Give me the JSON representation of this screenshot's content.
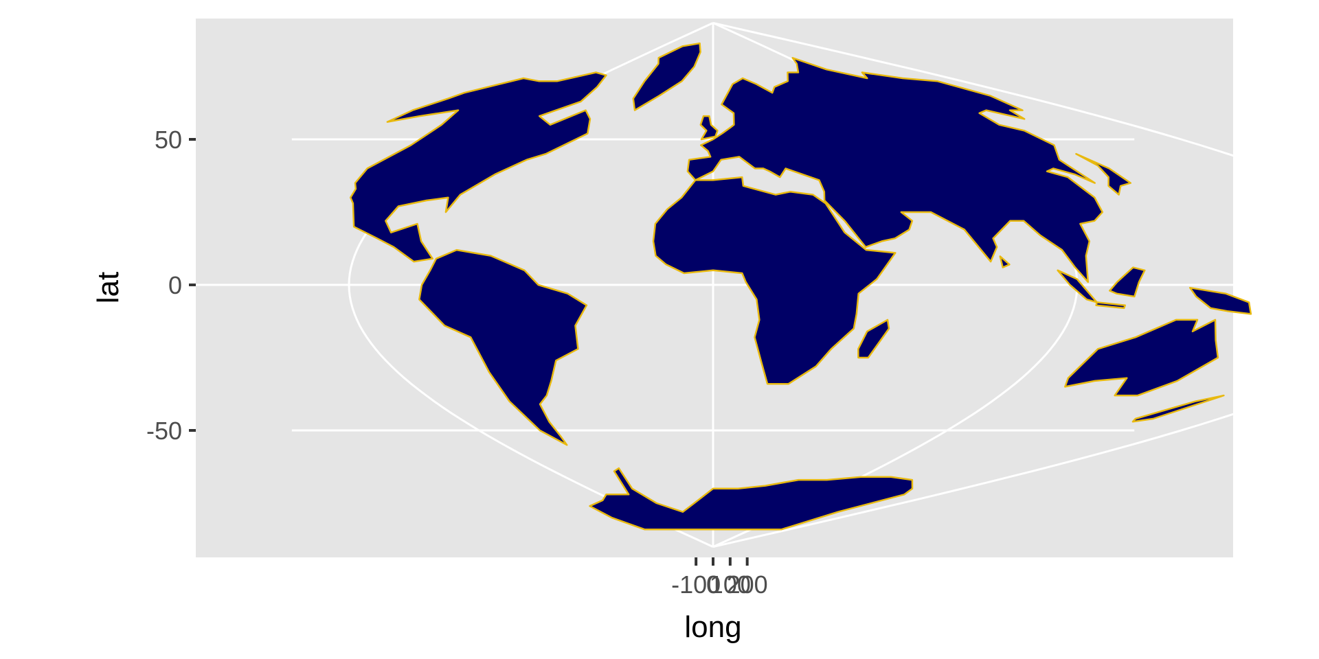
{
  "chart_data": {
    "type": "map",
    "projection": "sinusoidal",
    "x_axis": {
      "title": "long",
      "ticks": [
        {
          "value": -100,
          "label": "-100"
        },
        {
          "value": 0,
          "label": "0"
        },
        {
          "value": 100,
          "label": "100"
        },
        {
          "value": 200,
          "label": "200"
        }
      ]
    },
    "y_axis": {
      "title": "lat",
      "ticks": [
        {
          "value": 50,
          "label": "50"
        },
        {
          "value": 0,
          "label": "0"
        },
        {
          "value": -50,
          "label": "-50"
        }
      ]
    },
    "ylim": [
      -90,
      90
    ],
    "grid": true,
    "colors": {
      "panel_background": "#e5e5e5",
      "gridline": "#ffffff",
      "land_fill": "#000066",
      "border": "#e8b90f",
      "tick_label": "#4d4d4d",
      "axis_title": "#000000"
    },
    "regions": [
      {
        "name": "North America",
        "points": [
          [
            -168,
            66
          ],
          [
            -160,
            71
          ],
          [
            -140,
            70
          ],
          [
            -125,
            70
          ],
          [
            -110,
            73
          ],
          [
            -95,
            72
          ],
          [
            -85,
            68
          ],
          [
            -80,
            63
          ],
          [
            -90,
            58
          ],
          [
            -78,
            55
          ],
          [
            -70,
            60
          ],
          [
            -62,
            57
          ],
          [
            -56,
            52
          ],
          [
            -65,
            45
          ],
          [
            -70,
            43
          ],
          [
            -76,
            38
          ],
          [
            -81,
            31
          ],
          [
            -81,
            25
          ],
          [
            -84,
            30
          ],
          [
            -90,
            29
          ],
          [
            -97,
            27
          ],
          [
            -97,
            22
          ],
          [
            -93,
            18
          ],
          [
            -87,
            21
          ],
          [
            -83,
            15
          ],
          [
            -78,
            9
          ],
          [
            -83,
            8
          ],
          [
            -90,
            13
          ],
          [
            -96,
            16
          ],
          [
            -105,
            20
          ],
          [
            -112,
            28
          ],
          [
            -115,
            30
          ],
          [
            -117,
            33
          ],
          [
            -120,
            35
          ],
          [
            -124,
            40
          ],
          [
            -124,
            48
          ],
          [
            -130,
            55
          ],
          [
            -140,
            60
          ],
          [
            -152,
            58
          ],
          [
            -160,
            56
          ],
          [
            -165,
            60
          ],
          [
            -166,
            64
          ]
        ]
      },
      {
        "name": "Greenland",
        "points": [
          [
            -72,
            78
          ],
          [
            -60,
            82
          ],
          [
            -30,
            83
          ],
          [
            -20,
            80
          ],
          [
            -20,
            75
          ],
          [
            -25,
            70
          ],
          [
            -35,
            65
          ],
          [
            -43,
            60
          ],
          [
            -50,
            64
          ],
          [
            -55,
            70
          ],
          [
            -62,
            76
          ]
        ]
      },
      {
        "name": "South America",
        "points": [
          [
            -77,
            9
          ],
          [
            -72,
            12
          ],
          [
            -62,
            10
          ],
          [
            -52,
            5
          ],
          [
            -48,
            0
          ],
          [
            -40,
            -3
          ],
          [
            -35,
            -7
          ],
          [
            -39,
            -14
          ],
          [
            -40,
            -22
          ],
          [
            -48,
            -26
          ],
          [
            -53,
            -33
          ],
          [
            -58,
            -38
          ],
          [
            -63,
            -41
          ],
          [
            -66,
            -47
          ],
          [
            -68,
            -52
          ],
          [
            -70,
            -55
          ],
          [
            -74,
            -50
          ],
          [
            -73,
            -40
          ],
          [
            -71,
            -30
          ],
          [
            -70,
            -18
          ],
          [
            -76,
            -14
          ],
          [
            -81,
            -5
          ],
          [
            -80,
            0
          ],
          [
            -78,
            5
          ]
        ]
      },
      {
        "name": "Africa",
        "points": [
          [
            -17,
            21
          ],
          [
            -17,
            15
          ],
          [
            -16,
            10
          ],
          [
            -13,
            7
          ],
          [
            -8,
            4
          ],
          [
            0,
            5
          ],
          [
            8,
            4
          ],
          [
            9,
            1
          ],
          [
            12,
            -5
          ],
          [
            13,
            -12
          ],
          [
            12,
            -18
          ],
          [
            15,
            -27
          ],
          [
            18,
            -34
          ],
          [
            25,
            -34
          ],
          [
            32,
            -28
          ],
          [
            35,
            -22
          ],
          [
            40,
            -15
          ],
          [
            40,
            -10
          ],
          [
            40,
            -3
          ],
          [
            45,
            2
          ],
          [
            51,
            11
          ],
          [
            43,
            12
          ],
          [
            38,
            18
          ],
          [
            35,
            28
          ],
          [
            32,
            31
          ],
          [
            25,
            32
          ],
          [
            20,
            31
          ],
          [
            10,
            34
          ],
          [
            10,
            37
          ],
          [
            0,
            36
          ],
          [
            -6,
            36
          ],
          [
            -10,
            30
          ],
          [
            -14,
            26
          ]
        ]
      },
      {
        "name": "Eurasia",
        "points": [
          [
            -9,
            43
          ],
          [
            -9,
            39
          ],
          [
            -6,
            36
          ],
          [
            0,
            39
          ],
          [
            3,
            43
          ],
          [
            10,
            44
          ],
          [
            15,
            40
          ],
          [
            18,
            40
          ],
          [
            20,
            39
          ],
          [
            23,
            37
          ],
          [
            26,
            40
          ],
          [
            36,
            36
          ],
          [
            36,
            32
          ],
          [
            35,
            29
          ],
          [
            39,
            22
          ],
          [
            43,
            13
          ],
          [
            48,
            15
          ],
          [
            52,
            16
          ],
          [
            57,
            19
          ],
          [
            59,
            22
          ],
          [
            57,
            25
          ],
          [
            66,
            25
          ],
          [
            73,
            19
          ],
          [
            77,
            8
          ],
          [
            80,
            13
          ],
          [
            80,
            16
          ],
          [
            88,
            22
          ],
          [
            92,
            22
          ],
          [
            94,
            17
          ],
          [
            98,
            12
          ],
          [
            100,
            6
          ],
          [
            103,
            1
          ],
          [
            104,
            10
          ],
          [
            107,
            15
          ],
          [
            108,
            21
          ],
          [
            113,
            22
          ],
          [
            118,
            25
          ],
          [
            121,
            30
          ],
          [
            122,
            37
          ],
          [
            118,
            39
          ],
          [
            122,
            40
          ],
          [
            126,
            38
          ],
          [
            128,
            35
          ],
          [
            130,
            43
          ],
          [
            140,
            48
          ],
          [
            142,
            53
          ],
          [
            137,
            55
          ],
          [
            142,
            59
          ],
          [
            150,
            60
          ],
          [
            157,
            57
          ],
          [
            163,
            60
          ],
          [
            170,
            60
          ],
          [
            180,
            65
          ],
          [
            180,
            70
          ],
          [
            160,
            71
          ],
          [
            140,
            73
          ],
          [
            130,
            71
          ],
          [
            113,
            74
          ],
          [
            105,
            78
          ],
          [
            95,
            76
          ],
          [
            80,
            73
          ],
          [
            70,
            73
          ],
          [
            60,
            70
          ],
          [
            45,
            68
          ],
          [
            40,
            66
          ],
          [
            33,
            69
          ],
          [
            25,
            71
          ],
          [
            15,
            69
          ],
          [
            5,
            62
          ],
          [
            11,
            59
          ],
          [
            10,
            55
          ],
          [
            8,
            54
          ],
          [
            4,
            52
          ],
          [
            0,
            50
          ],
          [
            -5,
            48
          ],
          [
            -2,
            46
          ],
          [
            -1,
            44
          ]
        ]
      },
      {
        "name": "Great Britain",
        "points": [
          [
            -5,
            50
          ],
          [
            1,
            51
          ],
          [
            2,
            53
          ],
          [
            -1,
            55
          ],
          [
            -2,
            58
          ],
          [
            -5,
            58
          ],
          [
            -6,
            55
          ],
          [
            -3,
            53
          ]
        ]
      },
      {
        "name": "Madagascar",
        "points": [
          [
            44,
            -25
          ],
          [
            47,
            -25
          ],
          [
            50,
            -15
          ],
          [
            49,
            -12
          ],
          [
            44,
            -16
          ],
          [
            43,
            -22
          ]
        ]
      },
      {
        "name": "Sri Lanka",
        "points": [
          [
            80,
            6
          ],
          [
            82,
            7
          ],
          [
            80,
            9.8
          ]
        ]
      },
      {
        "name": "Japan",
        "points": [
          [
            130,
            31
          ],
          [
            135,
            34
          ],
          [
            140,
            35
          ],
          [
            142,
            40
          ],
          [
            141,
            45
          ],
          [
            140,
            41
          ],
          [
            136,
            37
          ],
          [
            131,
            34
          ]
        ]
      },
      {
        "name": "Sumatra",
        "points": [
          [
            95,
            5
          ],
          [
            100,
            2
          ],
          [
            106,
            -6
          ],
          [
            103,
            -5
          ],
          [
            98,
            0
          ]
        ]
      },
      {
        "name": "Borneo",
        "points": [
          [
            109,
            -2
          ],
          [
            111,
            1
          ],
          [
            116,
            6
          ],
          [
            119,
            5
          ],
          [
            117,
            1
          ],
          [
            116,
            -4
          ],
          [
            111,
            -3
          ]
        ]
      },
      {
        "name": "Java",
        "points": [
          [
            106,
            -6
          ],
          [
            114,
            -7
          ],
          [
            114,
            -8
          ],
          [
            106,
            -7
          ]
        ]
      },
      {
        "name": "New Guinea",
        "points": [
          [
            131,
            -1
          ],
          [
            141,
            -3
          ],
          [
            148,
            -6
          ],
          [
            150,
            -10
          ],
          [
            143,
            -9
          ],
          [
            138,
            -8
          ],
          [
            133,
            -4
          ]
        ]
      },
      {
        "name": "Australia",
        "points": [
          [
            114,
            -22
          ],
          [
            122,
            -18
          ],
          [
            130,
            -12
          ],
          [
            136,
            -12
          ],
          [
            137,
            -16
          ],
          [
            141,
            -12
          ],
          [
            146,
            -19
          ],
          [
            153,
            -25
          ],
          [
            152,
            -33
          ],
          [
            148,
            -38
          ],
          [
            140,
            -38
          ],
          [
            134,
            -32
          ],
          [
            125,
            -33
          ],
          [
            118,
            -35
          ],
          [
            115,
            -32
          ]
        ]
      },
      {
        "name": "New Zealand",
        "points": [
          [
            167,
            -46
          ],
          [
            173,
            -40
          ],
          [
            178,
            -38
          ],
          [
            174,
            -46
          ],
          [
            169,
            -47
          ]
        ]
      },
      {
        "name": "Antarctica",
        "points": [
          [
            -180,
            -84
          ],
          [
            -160,
            -80
          ],
          [
            -140,
            -76
          ],
          [
            -110,
            -74
          ],
          [
            -95,
            -72
          ],
          [
            -75,
            -72
          ],
          [
            -62,
            -64
          ],
          [
            -57,
            -63
          ],
          [
            -65,
            -70
          ],
          [
            -60,
            -75
          ],
          [
            -40,
            -78
          ],
          [
            -20,
            -75
          ],
          [
            0,
            -70
          ],
          [
            20,
            -70
          ],
          [
            40,
            -69
          ],
          [
            60,
            -67
          ],
          [
            80,
            -67
          ],
          [
            100,
            -66
          ],
          [
            120,
            -66
          ],
          [
            140,
            -67
          ],
          [
            160,
            -70
          ],
          [
            170,
            -72
          ],
          [
            165,
            -78
          ],
          [
            180,
            -84
          ]
        ]
      }
    ]
  }
}
